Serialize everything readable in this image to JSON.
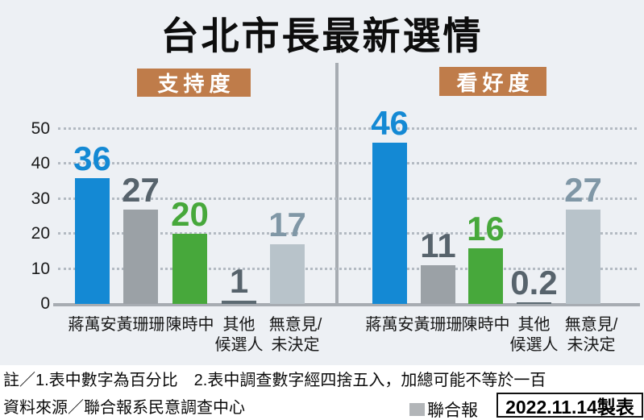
{
  "title": "台北市長最新選情",
  "colors": {
    "blue": "#1489d4",
    "gray": "#9ba1a6",
    "green": "#47a83b",
    "darkslate": "#5b6971",
    "lightgray": "#b8c3ca",
    "slate": "#57636c",
    "steel": "#8097a6",
    "badge": "#bf7c4a",
    "axis_line": "#a7acb2",
    "grid_dot": "#b3bac2",
    "chart_bg": "#edf0f4"
  },
  "y_axis": {
    "ticks": [
      0,
      10,
      20,
      30,
      40,
      50
    ],
    "max": 50
  },
  "chart_data": [
    {
      "type": "bar",
      "id": "support",
      "badge_label": "支持度",
      "categories": [
        "蔣萬安",
        "黃珊珊",
        "陳時中",
        "其他候選人",
        "無意見/未決定"
      ],
      "category_lines": [
        [
          "蔣萬安"
        ],
        [
          "黃珊珊"
        ],
        [
          "陳時中"
        ],
        [
          "其他",
          "候選人"
        ],
        [
          "無意見/",
          "未決定"
        ]
      ],
      "values": [
        36,
        27,
        20,
        1,
        17
      ],
      "bar_color_keys": [
        "blue",
        "gray",
        "green",
        "darkslate",
        "lightgray"
      ],
      "value_color_keys": [
        "blue",
        "slate",
        "green",
        "slate",
        "steel"
      ],
      "ylim": [
        0,
        50
      ],
      "grid": "dotted-horizontal",
      "value_labels": true
    },
    {
      "type": "bar",
      "id": "prospect",
      "badge_label": "看好度",
      "categories": [
        "蔣萬安",
        "黃珊珊",
        "陳時中",
        "其他候選人",
        "無意見/未決定"
      ],
      "category_lines": [
        [
          "蔣萬安"
        ],
        [
          "黃珊珊"
        ],
        [
          "陳時中"
        ],
        [
          "其他",
          "候選人"
        ],
        [
          "無意見/",
          "未決定"
        ]
      ],
      "values": [
        46,
        11,
        16,
        0.2,
        27
      ],
      "bar_color_keys": [
        "blue",
        "gray",
        "green",
        "darkslate",
        "lightgray"
      ],
      "value_color_keys": [
        "blue",
        "slate",
        "green",
        "slate",
        "steel"
      ],
      "ylim": [
        0,
        50
      ],
      "grid": "dotted-horizontal",
      "value_labels": true
    }
  ],
  "footer": {
    "note1": "註／1.表中數字為百分比　2.表中調查數字經四捨五入，加總可能不等於一百",
    "source": "資料來源／聯合報系民意調查中心",
    "legend_label": "聯合報",
    "date_label": "2022.11.14製表"
  }
}
